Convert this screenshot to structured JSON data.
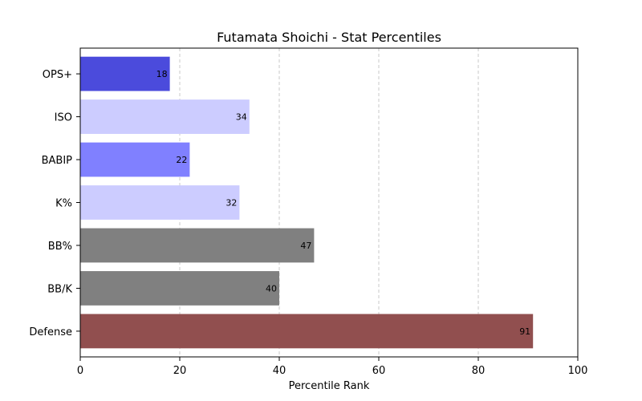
{
  "chart_data": {
    "type": "bar",
    "orientation": "horizontal",
    "title": "Futamata Shoichi - Stat Percentiles",
    "xlabel": "Percentile Rank",
    "ylabel": "",
    "xlim": [
      0,
      100
    ],
    "xticks": [
      0,
      20,
      40,
      60,
      80,
      100
    ],
    "grid": "vertical dashed",
    "categories": [
      "OPS+",
      "ISO",
      "BABIP",
      "K%",
      "BB%",
      "BB/K",
      "Defense"
    ],
    "values": [
      18,
      34,
      22,
      32,
      47,
      40,
      91
    ],
    "colors": [
      "#4b4bdc",
      "#ccccff",
      "#8080ff",
      "#ccccff",
      "#808080",
      "#808080",
      "#914f4f"
    ]
  }
}
